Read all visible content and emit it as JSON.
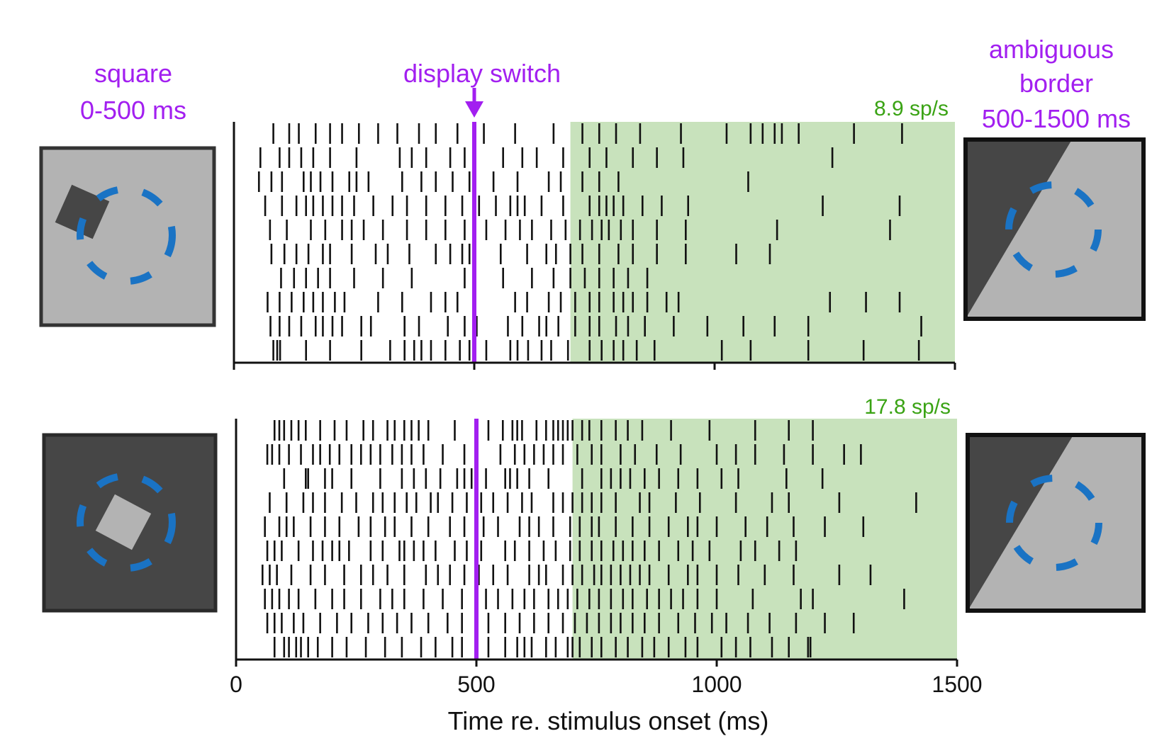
{
  "labels": {
    "left_top": [
      "square",
      "0-500 ms"
    ],
    "center_top": "display switch",
    "right_top": [
      "ambiguous",
      "border",
      "500-1500 ms"
    ]
  },
  "colors": {
    "accent_purple": "#a21ff0",
    "rate_green": "#3aa314",
    "shade_green": "#c8e2bc",
    "ring_blue": "#1a73c4",
    "light_gray": "#b3b3b3",
    "dark_gray": "#464646"
  },
  "icons": {
    "top_left": "square-on-light-background-icon",
    "bottom_left": "square-on-dark-background-icon",
    "top_right": "ambiguous-border-icon",
    "bottom_right": "ambiguous-border-icon"
  },
  "chart_data": {
    "type": "raster",
    "xlabel": "Time re. stimulus onset (ms)",
    "xlim": [
      0,
      1500
    ],
    "xticks": [
      0,
      500,
      1000,
      1500
    ],
    "event_marker": {
      "time": 500,
      "label": "display switch"
    },
    "panels": [
      {
        "name": "top",
        "rate_label": "8.9 sp/s",
        "shaded_window": [
          700,
          1500
        ],
        "trials": [
          [
            82,
            115,
            135,
            170,
            200,
            225,
            260,
            300,
            340,
            385,
            420,
            465,
            520,
            585,
            665,
            725,
            760,
            795,
            845,
            930,
            1025,
            1075,
            1100,
            1125,
            1140,
            1175,
            1290,
            1390
          ],
          [
            55,
            95,
            115,
            140,
            165,
            200,
            255,
            345,
            370,
            400,
            450,
            480,
            560,
            600,
            630,
            685,
            740,
            775,
            830,
            880,
            935,
            1245
          ],
          [
            52,
            78,
            100,
            145,
            160,
            180,
            205,
            240,
            255,
            280,
            350,
            390,
            420,
            455,
            490,
            540,
            590,
            655,
            680,
            725,
            760,
            800,
            1070
          ],
          [
            65,
            100,
            130,
            150,
            165,
            185,
            205,
            225,
            250,
            290,
            330,
            360,
            400,
            440,
            475,
            510,
            545,
            575,
            590,
            605,
            640,
            685,
            740,
            760,
            775,
            790,
            810,
            850,
            890,
            945,
            1225,
            1385
          ],
          [
            75,
            110,
            160,
            190,
            225,
            245,
            270,
            310,
            360,
            400,
            440,
            480,
            525,
            565,
            595,
            620,
            660,
            690,
            720,
            745,
            765,
            780,
            805,
            830,
            880,
            940,
            1130,
            1365
          ],
          [
            78,
            105,
            130,
            155,
            185,
            200,
            245,
            295,
            320,
            365,
            420,
            450,
            475,
            490,
            555,
            610,
            650,
            670,
            700,
            725,
            760,
            800,
            830,
            880,
            940,
            1045,
            1115
          ],
          [
            98,
            125,
            150,
            175,
            200,
            250,
            310,
            370,
            480,
            560,
            620,
            665,
            700,
            730,
            760,
            790,
            820,
            860
          ],
          [
            70,
            95,
            120,
            145,
            165,
            185,
            210,
            230,
            300,
            350,
            410,
            440,
            465,
            500,
            585,
            610,
            655,
            680,
            710,
            740,
            760,
            790,
            810,
            830,
            860,
            900,
            925,
            1240,
            1315,
            1385
          ],
          [
            76,
            95,
            115,
            140,
            170,
            185,
            205,
            225,
            265,
            285,
            355,
            385,
            445,
            480,
            505,
            570,
            600,
            635,
            650,
            675,
            710,
            740,
            760,
            795,
            820,
            855,
            915,
            985,
            1060,
            1125,
            1195,
            1430
          ],
          [
            82,
            90,
            96,
            150,
            200,
            265,
            325,
            355,
            375,
            390,
            410,
            440,
            470,
            490,
            525,
            575,
            590,
            612,
            640,
            660,
            695,
            740,
            765,
            790,
            810,
            838,
            875,
            1015,
            1075,
            1195,
            1310,
            1425
          ]
        ]
      },
      {
        "name": "bottom",
        "rate_label": "17.8 sp/s",
        "shaded_window": [
          700,
          1500
        ],
        "trials": [
          [
            80,
            90,
            100,
            115,
            130,
            145,
            175,
            205,
            230,
            265,
            285,
            315,
            330,
            350,
            365,
            380,
            400,
            455,
            525,
            555,
            575,
            585,
            595,
            625,
            645,
            660,
            670,
            680,
            690,
            700,
            720,
            735,
            760,
            790,
            815,
            845,
            905,
            985,
            1080,
            1150,
            1200
          ],
          [
            65,
            75,
            90,
            110,
            135,
            160,
            175,
            195,
            215,
            240,
            260,
            280,
            300,
            325,
            345,
            365,
            390,
            430,
            475,
            550,
            580,
            600,
            620,
            640,
            660,
            680,
            710,
            740,
            760,
            800,
            830,
            875,
            925,
            1000,
            1040,
            1080,
            1140,
            1200,
            1265,
            1300
          ],
          [
            100,
            145,
            150,
            185,
            200,
            240,
            300,
            345,
            370,
            395,
            425,
            460,
            475,
            490,
            520,
            560,
            570,
            585,
            610,
            650,
            720,
            760,
            780,
            800,
            820,
            850,
            880,
            920,
            960,
            1010,
            1045,
            1145,
            1220
          ],
          [
            70,
            105,
            140,
            160,
            185,
            220,
            250,
            285,
            305,
            330,
            355,
            375,
            405,
            420,
            450,
            480,
            510,
            535,
            565,
            595,
            615,
            660,
            680,
            700,
            720,
            740,
            760,
            790,
            840,
            860,
            915,
            965,
            1040,
            1115,
            1150,
            1255,
            1415
          ],
          [
            60,
            90,
            105,
            120,
            155,
            185,
            215,
            255,
            280,
            310,
            330,
            365,
            400,
            445,
            475,
            500,
            515,
            545,
            590,
            610,
            630,
            660,
            695,
            715,
            740,
            755,
            790,
            825,
            860,
            900,
            940,
            960,
            1000,
            1060,
            1105,
            1160,
            1225,
            1305
          ],
          [
            65,
            80,
            95,
            130,
            160,
            180,
            200,
            215,
            235,
            280,
            305,
            340,
            350,
            370,
            390,
            415,
            455,
            480,
            510,
            560,
            580,
            610,
            640,
            665,
            695,
            715,
            740,
            760,
            785,
            805,
            825,
            850,
            880,
            920,
            950,
            985,
            1050,
            1080,
            1130,
            1165
          ],
          [
            55,
            70,
            85,
            115,
            155,
            185,
            225,
            260,
            285,
            315,
            350,
            395,
            420,
            445,
            475,
            505,
            535,
            565,
            610,
            630,
            645,
            680,
            700,
            720,
            745,
            760,
            780,
            800,
            820,
            840,
            860,
            900,
            940,
            960,
            1000,
            1045,
            1100,
            1160,
            1255,
            1320
          ],
          [
            60,
            75,
            90,
            110,
            130,
            165,
            200,
            225,
            260,
            300,
            325,
            350,
            390,
            430,
            470,
            500,
            520,
            545,
            575,
            600,
            620,
            650,
            670,
            690,
            710,
            735,
            755,
            780,
            805,
            825,
            855,
            880,
            905,
            930,
            960,
            1000,
            1075,
            1175,
            1200,
            1390
          ],
          [
            65,
            80,
            95,
            120,
            140,
            175,
            210,
            240,
            275,
            305,
            335,
            365,
            400,
            440,
            470,
            500,
            525,
            560,
            590,
            620,
            650,
            680,
            705,
            730,
            755,
            780,
            800,
            825,
            850,
            880,
            920,
            955,
            990,
            1020,
            1065,
            1110,
            1165,
            1225,
            1285
          ],
          [
            80,
            100,
            110,
            125,
            135,
            150,
            170,
            200,
            230,
            270,
            310,
            345,
            385,
            415,
            450,
            470,
            500,
            525,
            560,
            585,
            600,
            615,
            645,
            665,
            690,
            700,
            715,
            740,
            760,
            790,
            815,
            845,
            870,
            900,
            935,
            960,
            1010,
            1040,
            1070,
            1115,
            1150,
            1190,
            1195
          ]
        ]
      }
    ]
  }
}
